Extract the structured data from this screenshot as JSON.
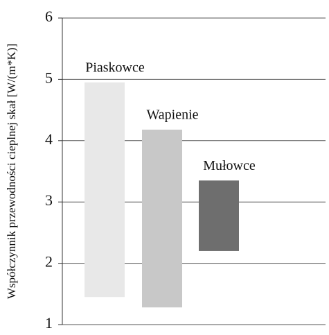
{
  "chart_data": {
    "type": "range_bar",
    "ylabel": "Współczynnik przewodności cieplnej skał [W/(m*K)]",
    "categories": [
      "Piaskowce",
      "Wapienie",
      "Mułowce"
    ],
    "low": [
      1.45,
      1.28,
      2.2
    ],
    "high": [
      4.95,
      4.18,
      3.35
    ],
    "colors": [
      "#e8e8e8",
      "#c8c8c8",
      "#6e6e6e"
    ],
    "ylim": [
      1,
      6
    ],
    "yticks": [
      1,
      2,
      3,
      4,
      5,
      6
    ],
    "grid": true
  }
}
